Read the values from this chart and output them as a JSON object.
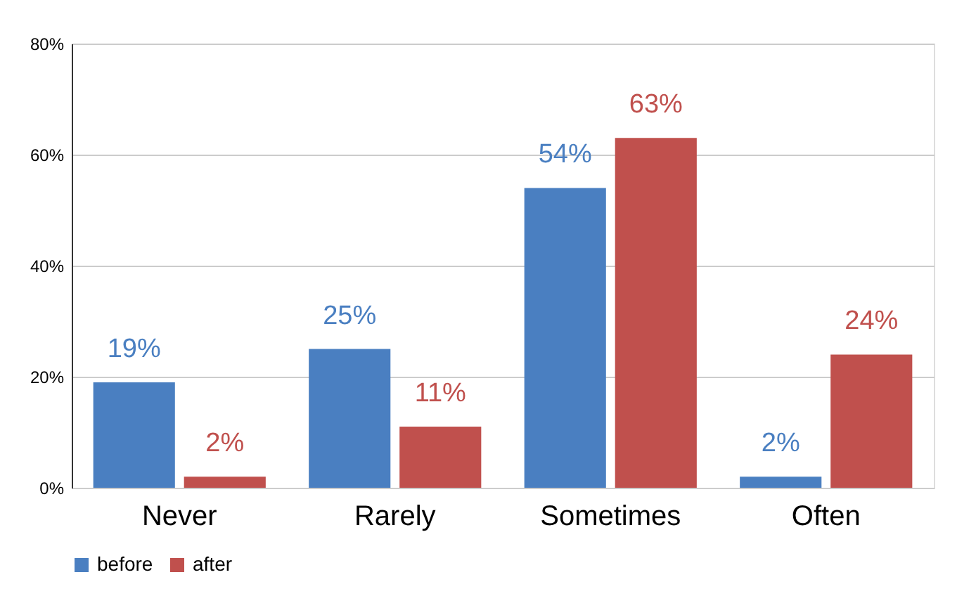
{
  "chart_data": {
    "type": "bar",
    "categories": [
      "Never",
      "Rarely",
      "Sometimes",
      "Often"
    ],
    "series": [
      {
        "name": "before",
        "color": "#4a7fc1",
        "values": [
          19,
          25,
          54,
          2
        ],
        "value_labels": [
          "19%",
          "25%",
          "54%",
          "2%"
        ]
      },
      {
        "name": "after",
        "color": "#c0504d",
        "values": [
          2,
          11,
          63,
          24
        ],
        "value_labels": [
          "2%",
          "11%",
          "63%",
          "24%"
        ]
      }
    ],
    "ylim": [
      0,
      80
    ],
    "yticks": [
      {
        "value": 0,
        "label": "0%"
      },
      {
        "value": 20,
        "label": "20%"
      },
      {
        "value": 40,
        "label": "40%"
      },
      {
        "value": 60,
        "label": "60%"
      },
      {
        "value": 80,
        "label": "80%"
      }
    ],
    "grid": "y",
    "legend": "bottom"
  }
}
